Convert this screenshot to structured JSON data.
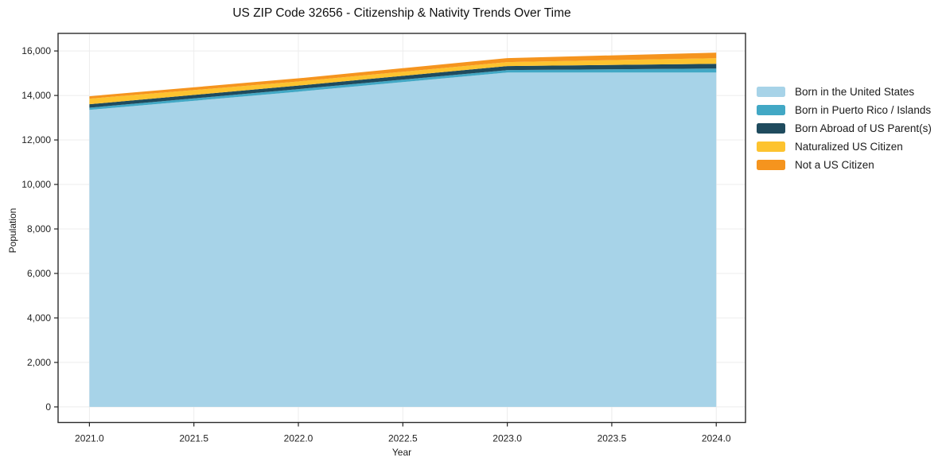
{
  "title": "US ZIP Code 32656 - Citizenship & Nativity Trends Over Time",
  "chart_data": {
    "type": "area",
    "stacked": true,
    "title": "US ZIP Code 32656 - Citizenship & Nativity Trends Over Time",
    "xlabel": "Year",
    "ylabel": "Population",
    "x": [
      2021,
      2022,
      2023,
      2024
    ],
    "series": [
      {
        "name": "Born in the United States",
        "color": "#a7d3e8",
        "values": [
          13350,
          14170,
          15030,
          15030
        ]
      },
      {
        "name": "Born in Puerto Rico / Islands",
        "color": "#42a8c5",
        "values": [
          100,
          115,
          110,
          180
        ]
      },
      {
        "name": "Born Abroad of US Parent(s)",
        "color": "#1f4b5e",
        "values": [
          155,
          160,
          180,
          215
        ]
      },
      {
        "name": "Naturalized US Citizen",
        "color": "#fdc32f",
        "values": [
          250,
          185,
          180,
          250
        ]
      },
      {
        "name": "Not a US Citizen",
        "color": "#f5941e",
        "values": [
          110,
          140,
          180,
          250
        ]
      }
    ],
    "totals": [
      13965,
      14770,
      15680,
      15925
    ],
    "x_ticks": [
      "2021.0",
      "2021.5",
      "2022.0",
      "2022.5",
      "2023.0",
      "2023.5",
      "2024.0"
    ],
    "y_ticks": [
      "0",
      "2,000",
      "4,000",
      "6,000",
      "8,000",
      "10,000",
      "12,000",
      "14,000",
      "16,000"
    ],
    "xlim": [
      2020.85,
      2024.14
    ],
    "ylim": [
      -700,
      16790
    ],
    "grid": true,
    "grid_color": "#ececec",
    "spine_color": "#2b2b2b",
    "tick_color": "#222222",
    "background": "#ffffff",
    "legend_position": "right"
  }
}
